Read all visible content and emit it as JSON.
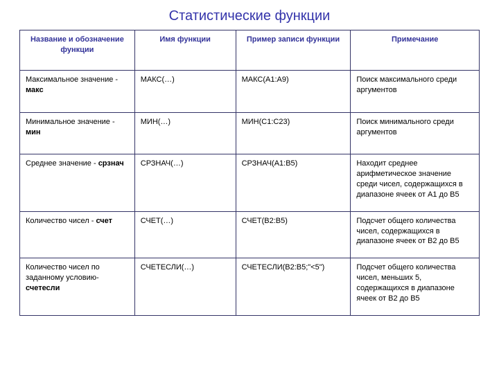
{
  "title": "Статистические функции",
  "colors": {
    "title_color": "#3333aa",
    "header_text_color": "#333399",
    "border_color": "#333366",
    "body_text_color": "#000000",
    "background": "#ffffff"
  },
  "table": {
    "columns": [
      {
        "label": "Название и обозначение функции",
        "width": "25%"
      },
      {
        "label": "Имя функции",
        "width": "22%"
      },
      {
        "label": "Пример записи функции",
        "width": "25%"
      },
      {
        "label": "Примечание",
        "width": "28%"
      }
    ],
    "rows": [
      {
        "name_prefix": "Максимальное значение - ",
        "name_bold": "макс",
        "fn": "МАКС(…)",
        "example": "МАКС(А1:А9)",
        "note": "Поиск максимального среди аргументов"
      },
      {
        "name_prefix": "Минимальное значение - ",
        "name_bold": "мин",
        "fn": "МИН(…)",
        "example": "МИН(С1:С23)",
        "note": "Поиск минимального среди аргументов"
      },
      {
        "name_prefix": "Среднее значение - ",
        "name_bold": "срзнач",
        "fn": "СРЗНАЧ(…)",
        "example": "СРЗНАЧ(А1:В5)",
        "note": "Находит среднее арифметическое значение среди чисел, содержащихся в диапазоне ячеек от А1 до В5"
      },
      {
        "name_prefix": "Количество чисел - ",
        "name_bold": "счет",
        "fn": "СЧЕТ(…)",
        "example": "СЧЕТ(В2:В5)",
        "note": "Подсчет общего количества чисел, содержащихся в диапазоне ячеек от В2 до В5"
      },
      {
        "name_prefix": "Количество чисел по заданному условию- ",
        "name_bold": "счетесли",
        "fn": "СЧЕТЕСЛИ(…)",
        "example": "СЧЕТЕСЛИ(В2:В5;\"<5\")",
        "note": "Подсчет общего количества чисел, меньших 5, содержащихся в диапазоне ячеек от В2 до В5"
      }
    ]
  }
}
